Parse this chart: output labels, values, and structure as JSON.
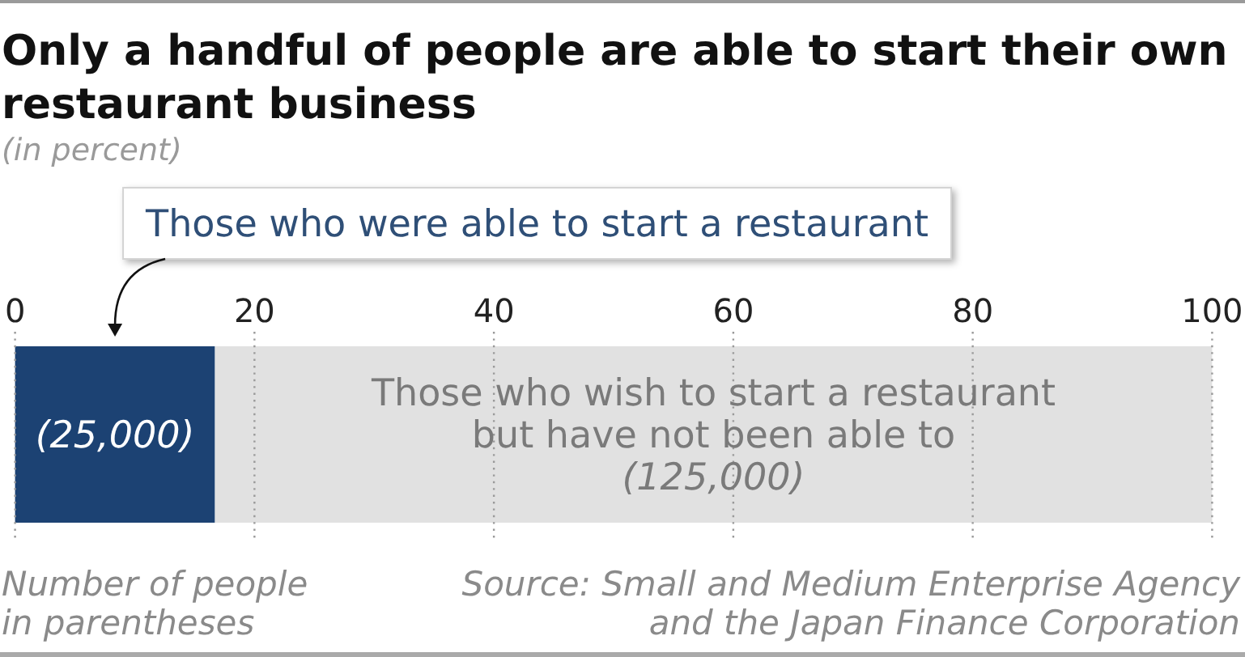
{
  "chart_data": {
    "type": "bar",
    "orientation": "horizontal",
    "stacked": true,
    "title": "Only a handful of people are able to start their own restaurant business",
    "subtitle": "(in percent)",
    "categories": [
      null
    ],
    "series": [
      {
        "name": "Those who were able to start a restaurant",
        "color": "#1c4273",
        "values": [
          16.7
        ]
      },
      {
        "name": "Those who wish to start a restaurant but have not been able to",
        "color": "#e1e1e1",
        "values": [
          83.3
        ]
      }
    ],
    "xlim": [
      0,
      100
    ],
    "xticks": [
      0,
      20,
      40,
      60,
      80,
      100
    ],
    "grid": "x",
    "annotations": [
      "(25,000)",
      "(125,000)",
      "Number of people in parentheses",
      "Source: Small and Medium Enterprise Agency and the Japan Finance Corporation"
    ]
  }
}
